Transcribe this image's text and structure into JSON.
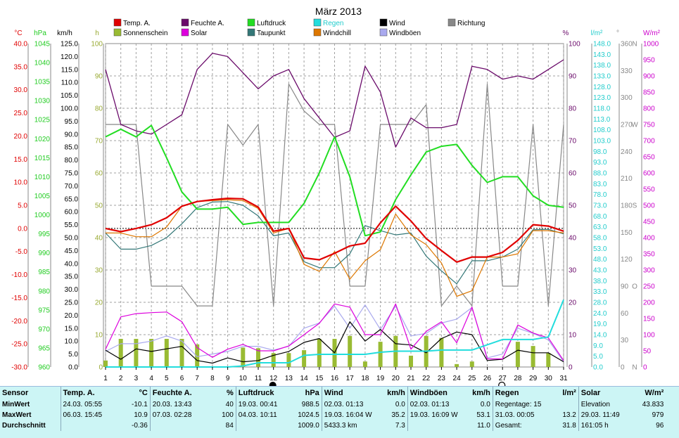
{
  "title": "März 2013",
  "axis_units": {
    "temp": "°C",
    "press": "hPa",
    "wind": "km/h",
    "sun": "h",
    "hum": "%",
    "rain": "l/m²",
    "dir": "°",
    "solar": "W/m²"
  },
  "compass": {
    "north": "N",
    "west": "W",
    "south": "S",
    "east": "O"
  },
  "legend": [
    {
      "key": "temp",
      "label": "Temp. A.",
      "color": "#e00000"
    },
    {
      "key": "hum",
      "label": "Feuchte A.",
      "color": "#6a0a6a"
    },
    {
      "key": "press",
      "label": "Luftdruck",
      "color": "#22dd22"
    },
    {
      "key": "rain",
      "label": "Regen",
      "color": "#22dddd"
    },
    {
      "key": "wind",
      "label": "Wind",
      "color": "#000000"
    },
    {
      "key": "dir",
      "label": "Richtung",
      "color": "#888888"
    },
    {
      "key": "sun",
      "label": "Sonnenschein",
      "color": "#99bb33"
    },
    {
      "key": "solar",
      "label": "Solar",
      "color": "#dd00dd"
    },
    {
      "key": "dew",
      "label": "Taupunkt",
      "color": "#337777"
    },
    {
      "key": "chill",
      "label": "Windchill",
      "color": "#dd7700"
    },
    {
      "key": "gust",
      "label": "Windböen",
      "color": "#a9a9ee"
    }
  ],
  "chart_data": {
    "type": "line",
    "title": "März 2013",
    "x": [
      1,
      2,
      3,
      4,
      5,
      6,
      7,
      8,
      9,
      10,
      11,
      12,
      13,
      14,
      15,
      16,
      17,
      18,
      19,
      20,
      21,
      22,
      23,
      24,
      25,
      26,
      27,
      28,
      29,
      30,
      31
    ],
    "axes": {
      "temp": {
        "unit": "°C",
        "range": [
          -30,
          40
        ],
        "ticks": [
          "40.0",
          "35.0",
          "30.0",
          "25.0",
          "20.0",
          "15.0",
          "10.0",
          "5.0",
          "0.0",
          "-5.0",
          "-10.0",
          "-15.0",
          "-20.0",
          "-25.0",
          "-30.0"
        ]
      },
      "press": {
        "unit": "hPa",
        "range": [
          960,
          1045
        ],
        "ticks": [
          "1045",
          "1040",
          "1035",
          "1030",
          "1025",
          "1020",
          "1015",
          "1010",
          "1005",
          "1000",
          "995",
          "990",
          "985",
          "980",
          "975",
          "970",
          "965",
          "960"
        ]
      },
      "wind": {
        "unit": "km/h",
        "range": [
          0,
          125
        ],
        "ticks": [
          "125.0",
          "120.0",
          "115.0",
          "110.0",
          "105.0",
          "100.0",
          "95.0",
          "90.0",
          "85.0",
          "80.0",
          "75.0",
          "70.0",
          "65.0",
          "60.0",
          "55.0",
          "50.0",
          "45.0",
          "40.0",
          "35.0",
          "30.0",
          "25.0",
          "20.0",
          "15.0",
          "10.0",
          "5.0",
          "0.0"
        ]
      },
      "sun": {
        "unit": "h",
        "range": [
          0,
          100
        ],
        "ticks": [
          "100",
          "90",
          "80",
          "70",
          "60",
          "50",
          "40",
          "30",
          "20",
          "10",
          "0"
        ]
      },
      "hum": {
        "unit": "%",
        "range": [
          0,
          100
        ],
        "ticks": [
          "100",
          "90",
          "80",
          "70",
          "60",
          "50",
          "40",
          "30",
          "20",
          "10",
          "0"
        ]
      },
      "rain": {
        "unit": "l/m²",
        "range": [
          0,
          153
        ],
        "ticks": [
          "148.0",
          "143.0",
          "138.0",
          "133.0",
          "128.0",
          "123.0",
          "118.0",
          "113.0",
          "108.0",
          "103.0",
          "98.0",
          "93.0",
          "88.0",
          "83.0",
          "78.0",
          "73.0",
          "68.0",
          "63.0",
          "58.0",
          "53.0",
          "48.0",
          "43.0",
          "38.0",
          "33.0",
          "28.0",
          "24.0",
          "19.0",
          "14.0",
          "9.0",
          "5.0",
          "0.0"
        ]
      },
      "dir": {
        "unit": "°",
        "range": [
          0,
          360
        ],
        "ticks": [
          "360",
          "330",
          "300",
          "270",
          "240",
          "210",
          "180",
          "150",
          "120",
          "90",
          "60",
          "30",
          "0"
        ]
      },
      "solar": {
        "unit": "W/m²",
        "range": [
          0,
          1000
        ],
        "ticks": [
          "1000",
          "950",
          "900",
          "850",
          "800",
          "750",
          "700",
          "650",
          "600",
          "550",
          "500",
          "450",
          "400",
          "350",
          "300",
          "250",
          "200",
          "150",
          "100",
          "50",
          "0"
        ]
      }
    },
    "series": [
      {
        "name": "Temp. A.",
        "axis": "temp",
        "color": "#e00000",
        "width": 2.2,
        "values": [
          0,
          -0.7,
          0,
          0.8,
          2.3,
          4.8,
          5.8,
          6.2,
          6.5,
          6.4,
          4.6,
          -0.6,
          0,
          -6.4,
          -6.8,
          -5.4,
          -3.8,
          -3.2,
          1.2,
          4.8,
          1.6,
          -2.2,
          -4.8,
          -7.3,
          -6.2,
          -6.2,
          -5.2,
          -2.6,
          0.8,
          0.5,
          -0.6
        ]
      },
      {
        "name": "Feuchte A.",
        "axis": "hum",
        "color": "#6a0a6a",
        "width": 1.3,
        "values": [
          92,
          75,
          73,
          72,
          75,
          78,
          92,
          97,
          96,
          91,
          86,
          90,
          92,
          83,
          77,
          71,
          73,
          93,
          85,
          68,
          77,
          74,
          74,
          75,
          93,
          92,
          89,
          90,
          89,
          92,
          95
        ]
      },
      {
        "name": "Luftdruck",
        "axis": "press",
        "color": "#22dd22",
        "width": 2,
        "values": [
          1020.5,
          1022.5,
          1020.5,
          1023.5,
          1015,
          1006,
          1001.5,
          1001.5,
          1002,
          997.5,
          998,
          998,
          998,
          1003,
          1011,
          1020.5,
          1010,
          994.5,
          995.5,
          1004,
          1010.5,
          1016.5,
          1018,
          1018.5,
          1013,
          1008.5,
          1010,
          1010,
          1005,
          1002.5,
          1002
        ]
      },
      {
        "name": "Regen",
        "axis": "rain",
        "color": "#22dddd",
        "width": 2,
        "values": [
          0,
          0,
          0,
          0,
          0,
          0,
          0,
          0,
          0,
          0.5,
          2,
          2,
          2,
          5.5,
          6,
          6,
          6,
          6,
          7,
          7.5,
          7.5,
          7.5,
          8,
          8,
          8,
          10.5,
          13,
          13,
          13,
          14.2,
          31.8
        ]
      },
      {
        "name": "Wind",
        "axis": "wind",
        "color": "#000000",
        "width": 1.2,
        "values": [
          6.5,
          3,
          7,
          6,
          7,
          8,
          2.5,
          1.5,
          3.5,
          2,
          2.5,
          4.5,
          6,
          9.5,
          11,
          5.5,
          17.5,
          10,
          14.5,
          9,
          8.5,
          5.5,
          11,
          13.5,
          12.5,
          2.5,
          3,
          6.5,
          5.5,
          5.5,
          2
        ]
      },
      {
        "name": "Windböen",
        "axis": "wind",
        "color": "#a9a9ee",
        "width": 1.2,
        "values": [
          6,
          9,
          9,
          10,
          12,
          10,
          4,
          5,
          6,
          8,
          8,
          6.5,
          8,
          15,
          17,
          23.5,
          15,
          24,
          14.5,
          23.5,
          12,
          13,
          17,
          18.5,
          23,
          3.5,
          5,
          15,
          13,
          10.5,
          2
        ]
      },
      {
        "name": "Richtung",
        "axis": "dir",
        "color": "#888888",
        "width": 1.2,
        "values": [
          270,
          270,
          270,
          90,
          90,
          90,
          68,
          68,
          270,
          247,
          270,
          68,
          315,
          285,
          270,
          270,
          90,
          90,
          270,
          270,
          270,
          292,
          68,
          90,
          68,
          315,
          90,
          90,
          270,
          68,
          270
        ]
      },
      {
        "name": "Sonnenschein",
        "axis": "sun",
        "color": "#99bb33",
        "type": "bar",
        "values": [
          2,
          8.7,
          8.7,
          8.7,
          8.7,
          8.7,
          7,
          0,
          0,
          6,
          5.8,
          4.3,
          4.3,
          5.2,
          8.7,
          8.7,
          9.6,
          1.7,
          7.8,
          9.6,
          3.5,
          9.6,
          9,
          0.9,
          1.7,
          0,
          0,
          7.8,
          6.5,
          4.3,
          0
        ]
      },
      {
        "name": "Solar",
        "axis": "solar",
        "color": "#dd00dd",
        "width": 1.2,
        "values": [
          55,
          155,
          165,
          168,
          170,
          140,
          60,
          30,
          55,
          70,
          50,
          50,
          65,
          100,
          135,
          195,
          185,
          100,
          100,
          195,
          55,
          110,
          140,
          75,
          185,
          25,
          25,
          130,
          105,
          90,
          20
        ]
      },
      {
        "name": "Taupunkt",
        "axis": "temp",
        "color": "#337777",
        "width": 1.2,
        "values": [
          -1,
          -4.5,
          -4.5,
          -3.7,
          -2,
          1,
          4.5,
          5.7,
          5.8,
          5,
          2.7,
          -1.6,
          -1,
          -7.2,
          -8.5,
          -8.5,
          -5.5,
          0.6,
          -0.5,
          -1.4,
          -1,
          -6,
          -9.2,
          -12,
          -7,
          -7,
          -6.2,
          -4.5,
          -0.3,
          -0.2,
          -1.2
        ]
      },
      {
        "name": "Windchill",
        "axis": "temp",
        "color": "#dd7700",
        "width": 1.2,
        "values": [
          -1,
          -1,
          -1.8,
          -1.8,
          0.3,
          4.8,
          5.8,
          6,
          6.2,
          6,
          4.3,
          -1,
          0,
          -7.8,
          -9.3,
          -5,
          -11,
          -7,
          -4.6,
          3.1,
          -1.4,
          -3.5,
          -7.5,
          -14.7,
          -13.5,
          -6.2,
          -6.2,
          -5.5,
          -0.5,
          -0.5,
          -1
        ]
      }
    ],
    "reference_lines": [
      {
        "axis": "temp",
        "value": 0,
        "style": "dotted"
      }
    ],
    "moon_phases": [
      {
        "day": 12,
        "phase": "new"
      },
      {
        "day": 27,
        "phase": "full"
      }
    ],
    "grid": true,
    "legend_position": "top"
  },
  "stats": {
    "columns": [
      {
        "header": "Sensor",
        "unit": "",
        "rows": [
          {
            "label": "MinWert"
          },
          {
            "label": "MaxWert"
          },
          {
            "label": "Durchschnitt"
          }
        ]
      },
      {
        "header": "Temp. A.",
        "unit": "°C",
        "rows": [
          {
            "time": "24.03.  05:55",
            "value": "-10.1"
          },
          {
            "time": "06.03.  15:45",
            "value": "10.9"
          },
          {
            "time": "",
            "value": "-0.36"
          }
        ]
      },
      {
        "header": "Feuchte A.",
        "unit": "%",
        "rows": [
          {
            "time": "20.03.  13:43",
            "value": "40"
          },
          {
            "time": "07.03.  02:28",
            "value": "100"
          },
          {
            "time": "",
            "value": "84"
          }
        ]
      },
      {
        "header": "Luftdruck",
        "unit": "hPa",
        "rows": [
          {
            "time": "19.03.  00:41",
            "value": "988.5"
          },
          {
            "time": "04.03.  10:11",
            "value": "1024.5"
          },
          {
            "time": "",
            "value": "1009.0"
          }
        ]
      },
      {
        "header": "Wind",
        "unit": "km/h",
        "rows": [
          {
            "time": "02.03.  01:13",
            "value": "0.0"
          },
          {
            "time": "19.03.  16:04  W",
            "value": "35.2"
          },
          {
            "time": "5433.3 km",
            "value": "7.3"
          }
        ]
      },
      {
        "header": "Windböen",
        "unit": "km/h",
        "rows": [
          {
            "time": "02.03.  01:13",
            "value": "0.0"
          },
          {
            "time": "19.03.  16:09  W",
            "value": "53.1"
          },
          {
            "time": "",
            "value": "11.0"
          }
        ]
      },
      {
        "header": "Regen",
        "unit": "l/m²",
        "rows": [
          {
            "time": "Regentage: 15",
            "value": ""
          },
          {
            "time": "31.03.  00:05",
            "value": "13.2"
          },
          {
            "time": "Gesamt:",
            "value": "31.8"
          }
        ]
      },
      {
        "header": "Solar",
        "unit": "W/m²",
        "rows": [
          {
            "time": "Elevation",
            "value": "43.833"
          },
          {
            "time": "29.03.  11:49",
            "value": "979"
          },
          {
            "time": "161:05 h",
            "value": "96"
          }
        ]
      }
    ]
  }
}
